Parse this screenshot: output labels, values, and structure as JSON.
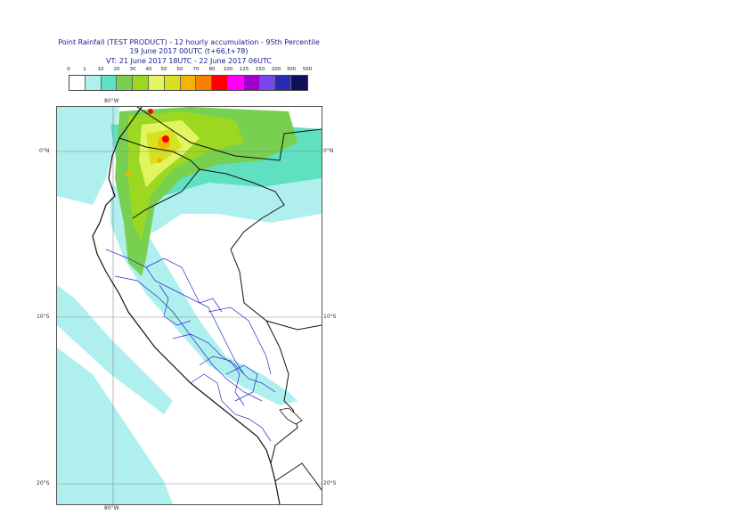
{
  "header": {
    "title_line1": "Point Rainfall (TEST PRODUCT) - 12 hourly accumulation - 95th Percentile",
    "title_line2": "19 June 2017 00UTC (t+66,t+78)",
    "title_line3": "VT: 21 June 2017 18UTC - 22 June 2017 06UTC"
  },
  "legend": {
    "ticks": [
      "0",
      "1",
      "10",
      "20",
      "30",
      "40",
      "50",
      "60",
      "70",
      "80",
      "100",
      "125",
      "150",
      "200",
      "300",
      "500"
    ],
    "colors": [
      "#ffffff",
      "#aff0ee",
      "#5fe0c0",
      "#78d050",
      "#9cd821",
      "#e0f560",
      "#d8e020",
      "#f5b400",
      "#f58200",
      "#ff0000",
      "#ff00ff",
      "#a000c8",
      "#7846f0",
      "#2a2ab4",
      "#10105a"
    ]
  },
  "map": {
    "lon_label_top": "80°W",
    "lon_label_bottom": "80°W",
    "lat_labels": [
      {
        "left": "0°N",
        "right": "0°N"
      },
      {
        "left": "10°S",
        "right": "10°S"
      },
      {
        "left": "20°S",
        "right": "20°S"
      }
    ]
  }
}
